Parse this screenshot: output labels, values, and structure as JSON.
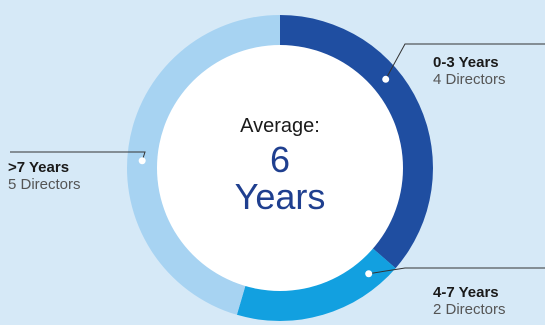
{
  "chart_data": {
    "type": "pie",
    "categories": [
      "0-3 Years",
      "4-7 Years",
      ">7 Years"
    ],
    "values": [
      4,
      2,
      5
    ],
    "counts": [
      "4 Directors",
      "2 Directors",
      "5 Directors"
    ],
    "colors": [
      "#1f4ea1",
      "#12a0e0",
      "#a7d3f2"
    ],
    "center": {
      "label": "Average:",
      "value": "6",
      "unit": "Years"
    }
  }
}
